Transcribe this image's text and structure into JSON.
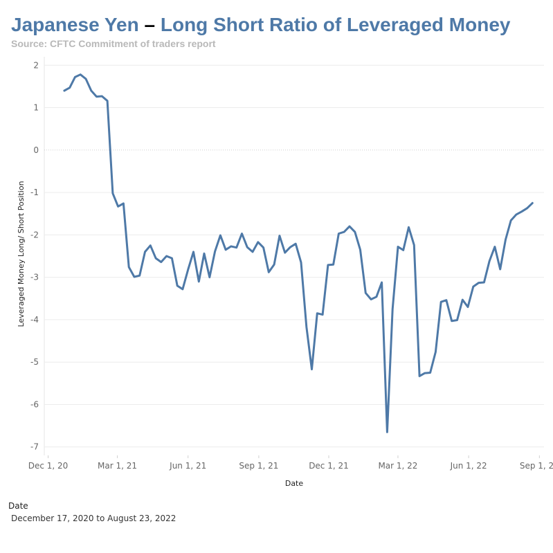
{
  "header": {
    "title_part1": "Japanese Yen",
    "dash": "–",
    "title_part2": "Long Short Ratio of Leveraged Money",
    "subtitle": "Source: CFTC Commitment of traders report"
  },
  "filter": {
    "label": "Date",
    "range": "December 17, 2020 to August 23, 2022"
  },
  "colors": {
    "line": "#4e79a7",
    "grid": "#ececec",
    "zero": "#cfcfcf"
  },
  "chart_data": {
    "type": "line",
    "title": "Japanese Yen – Long Short Ratio of Leveraged Money",
    "xlabel": "Date",
    "ylabel": "Leveraged Money Long/ Short Position",
    "ylim": [
      -7.2,
      2.2
    ],
    "xlim": [
      "2020-11-26",
      "2022-09-07"
    ],
    "y_ticks": [
      2,
      1,
      0,
      -1,
      -2,
      -3,
      -4,
      -5,
      -6,
      -7
    ],
    "y_tick_labels": [
      "2",
      "1",
      "0",
      "-1",
      "-2",
      "-3",
      "-4",
      "-5",
      "-6",
      "-7"
    ],
    "x_ticks": [
      {
        "date": "2020-12-01",
        "label": "Dec 1, 20"
      },
      {
        "date": "2021-03-01",
        "label": "Mar 1, 21"
      },
      {
        "date": "2021-06-01",
        "label": "Jun 1, 21"
      },
      {
        "date": "2021-09-01",
        "label": "Sep 1, 21"
      },
      {
        "date": "2021-12-01",
        "label": "Dec 1, 21"
      },
      {
        "date": "2022-03-01",
        "label": "Mar 1, 22"
      },
      {
        "date": "2022-06-01",
        "label": "Jun 1, 22"
      },
      {
        "date": "2022-09-01",
        "label": "Sep 1, 22"
      }
    ],
    "series": [
      {
        "name": "Leveraged Money Long/Short",
        "x": [
          "2020-12-22",
          "2020-12-29",
          "2021-01-05",
          "2021-01-12",
          "2021-01-19",
          "2021-01-26",
          "2021-02-02",
          "2021-02-09",
          "2021-02-16",
          "2021-02-23",
          "2021-03-02",
          "2021-03-09",
          "2021-03-16",
          "2021-03-23",
          "2021-03-30",
          "2021-04-06",
          "2021-04-13",
          "2021-04-20",
          "2021-04-27",
          "2021-05-04",
          "2021-05-11",
          "2021-05-18",
          "2021-05-25",
          "2021-06-01",
          "2021-06-08",
          "2021-06-15",
          "2021-06-22",
          "2021-06-29",
          "2021-07-06",
          "2021-07-13",
          "2021-07-20",
          "2021-07-27",
          "2021-08-03",
          "2021-08-10",
          "2021-08-17",
          "2021-08-24",
          "2021-08-31",
          "2021-09-07",
          "2021-09-14",
          "2021-09-21",
          "2021-09-28",
          "2021-10-05",
          "2021-10-12",
          "2021-10-19",
          "2021-10-26",
          "2021-11-02",
          "2021-11-09",
          "2021-11-16",
          "2021-11-23",
          "2021-11-30",
          "2021-12-07",
          "2021-12-14",
          "2021-12-21",
          "2021-12-28",
          "2022-01-04",
          "2022-01-11",
          "2022-01-18",
          "2022-01-25",
          "2022-02-01",
          "2022-02-08",
          "2022-02-15",
          "2022-02-22",
          "2022-03-01",
          "2022-03-08",
          "2022-03-15",
          "2022-03-22",
          "2022-03-29",
          "2022-04-05",
          "2022-04-12",
          "2022-04-19",
          "2022-04-26",
          "2022-05-03",
          "2022-05-10",
          "2022-05-17",
          "2022-05-24",
          "2022-05-31",
          "2022-06-07",
          "2022-06-14",
          "2022-06-21",
          "2022-06-28",
          "2022-07-05",
          "2022-07-12",
          "2022-07-19",
          "2022-07-26",
          "2022-08-02",
          "2022-08-09",
          "2022-08-16",
          "2022-08-23"
        ],
        "values": [
          1.4,
          1.47,
          1.72,
          1.78,
          1.68,
          1.4,
          1.26,
          1.27,
          1.16,
          -1.02,
          -1.33,
          -1.26,
          -2.76,
          -2.99,
          -2.96,
          -2.4,
          -2.25,
          -2.55,
          -2.64,
          -2.5,
          -2.55,
          -3.2,
          -3.28,
          -2.82,
          -2.4,
          -3.1,
          -2.44,
          -3.0,
          -2.39,
          -2.01,
          -2.35,
          -2.27,
          -2.3,
          -1.97,
          -2.29,
          -2.4,
          -2.17,
          -2.3,
          -2.88,
          -2.7,
          -2.02,
          -2.42,
          -2.29,
          -2.21,
          -2.65,
          -4.17,
          -5.17,
          -3.85,
          -3.88,
          -2.71,
          -2.7,
          -1.97,
          -1.93,
          -1.8,
          -1.93,
          -2.35,
          -3.37,
          -3.52,
          -3.46,
          -3.12,
          -6.65,
          -3.75,
          -2.28,
          -2.36,
          -1.82,
          -2.24,
          -5.33,
          -5.26,
          -5.25,
          -4.76,
          -3.58,
          -3.54,
          -4.03,
          -4.01,
          -3.53,
          -3.7,
          -3.22,
          -3.13,
          -3.12,
          -2.62,
          -2.28,
          -2.81,
          -2.11,
          -1.66,
          -1.52,
          -1.45,
          -1.37,
          -1.25
        ]
      }
    ]
  }
}
